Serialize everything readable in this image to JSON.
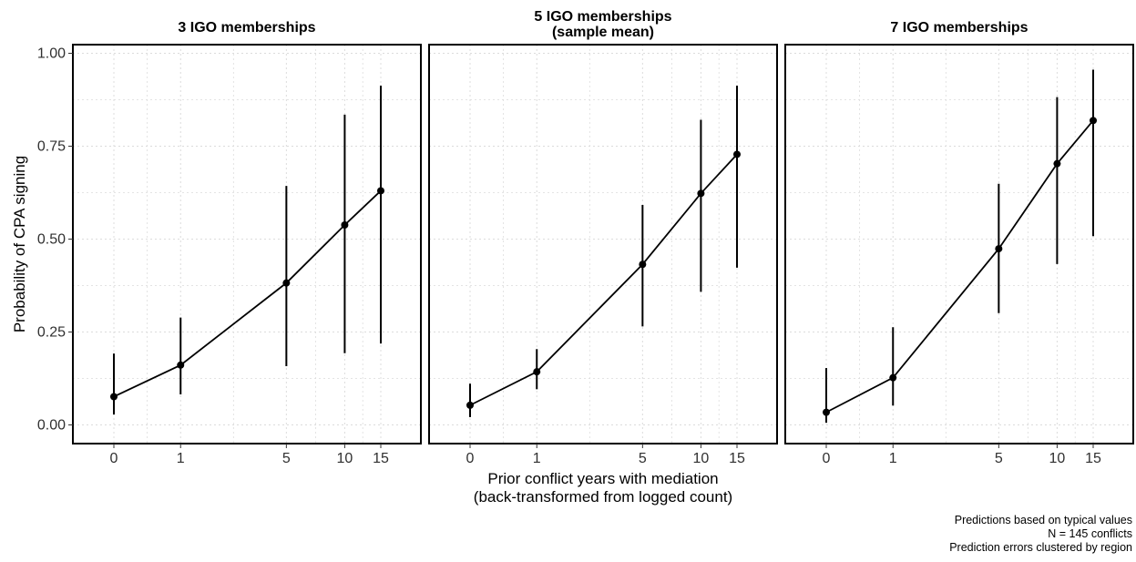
{
  "chart_data": {
    "type": "line",
    "ylabel": "Probability of CPA signing",
    "xlabel": [
      "Prior conflict years with mediation",
      "(back-transformed from logged count)"
    ],
    "ylim": [
      0,
      1
    ],
    "yticks": [
      0,
      0.25,
      0.5,
      0.75,
      1
    ],
    "ytick_labels": [
      "0.00",
      "0.25",
      "0.50",
      "0.75",
      "1.00"
    ],
    "x_scale": "log1p",
    "xticks": [
      0,
      1,
      5,
      10,
      15
    ],
    "grid": true,
    "series_color": "#000000",
    "grid_color": "#dcdcdc",
    "panels": [
      {
        "title": [
          "3 IGO memberships"
        ],
        "x": [
          0,
          1,
          5,
          10,
          15
        ],
        "y": [
          0.076,
          0.161,
          0.382,
          0.538,
          0.63
        ],
        "ci_low": [
          0.028,
          0.082,
          0.158,
          0.193,
          0.219
        ],
        "ci_high": [
          0.192,
          0.289,
          0.643,
          0.835,
          0.913
        ]
      },
      {
        "title": [
          "5 IGO memberships",
          "(sample mean)"
        ],
        "x": [
          0,
          1,
          5,
          10,
          15
        ],
        "y": [
          0.053,
          0.143,
          0.432,
          0.623,
          0.728
        ],
        "ci_low": [
          0.021,
          0.096,
          0.265,
          0.358,
          0.423
        ],
        "ci_high": [
          0.111,
          0.204,
          0.592,
          0.821,
          0.913
        ]
      },
      {
        "title": [
          "7 IGO memberships"
        ],
        "x": [
          0,
          1,
          5,
          10,
          15
        ],
        "y": [
          0.034,
          0.127,
          0.474,
          0.703,
          0.819
        ],
        "ci_low": [
          0.006,
          0.052,
          0.301,
          0.433,
          0.508
        ],
        "ci_high": [
          0.153,
          0.263,
          0.649,
          0.882,
          0.956
        ]
      }
    ],
    "caption": [
      "Predictions based on typical values",
      "N = 145 conflicts",
      "Prediction errors clustered by region"
    ]
  }
}
